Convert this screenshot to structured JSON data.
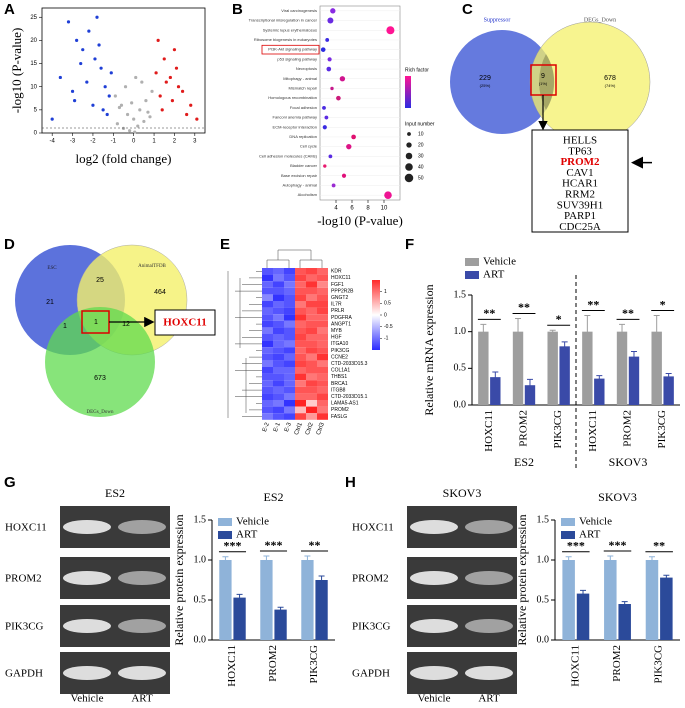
{
  "panel_labels": [
    "A",
    "B",
    "C",
    "D",
    "E",
    "F",
    "G",
    "H"
  ],
  "chart_data": [
    {
      "type": "scatter",
      "xlabel": "log2 (fold change)",
      "ylabel": "-log10 (P-value)",
      "xlim": [
        -4.5,
        3.5
      ],
      "ylim": [
        0,
        27
      ],
      "xticks": [
        -4,
        -3,
        -2,
        -1,
        0,
        1,
        2,
        3
      ],
      "yticks": [
        0,
        5,
        10,
        15,
        20,
        25
      ],
      "series": [
        {
          "color": "#1f3fd6",
          "x": [
            -3.2,
            -2.8,
            -2.5,
            -2.2,
            -1.9,
            -1.6,
            -1.4,
            -1.2,
            -3.6,
            -2.0,
            -1.8,
            -2.6,
            -1.5,
            -3.0,
            -1.3,
            -2.3,
            -1.7,
            -4.0,
            -2.9,
            -1.1
          ],
          "values": [
            24,
            20,
            18,
            22,
            16,
            14,
            10,
            8,
            12,
            6,
            25,
            15,
            5,
            9,
            4,
            11,
            19,
            3,
            7,
            13
          ]
        },
        {
          "color": "#e01b1b",
          "x": [
            1.2,
            1.5,
            1.8,
            2.1,
            2.4,
            2.8,
            1.3,
            1.6,
            2.0,
            2.6,
            3.1,
            1.4,
            1.9,
            2.2,
            1.1
          ],
          "values": [
            20,
            16,
            12,
            14,
            9,
            6,
            8,
            11,
            18,
            4,
            3,
            5,
            7,
            10,
            13
          ]
        },
        {
          "color": "#b0b0b0",
          "x": [
            -0.9,
            -0.6,
            -0.3,
            0,
            0.3,
            0.6,
            0.9,
            -0.8,
            -0.5,
            -0.2,
            0.2,
            0.5,
            0.8,
            -0.4,
            0.4,
            0.1,
            -0.1,
            0.7,
            -0.7,
            0.05
          ],
          "values": [
            8,
            6,
            4,
            3,
            5,
            7,
            9,
            2,
            1,
            0.5,
            1.5,
            2.5,
            3.5,
            10,
            11,
            12,
            6.5,
            4.5,
            5.5,
            0.2
          ]
        }
      ]
    },
    {
      "type": "dot",
      "xlabel": "-log10 (P-value)",
      "xlim": [
        2,
        12
      ],
      "xticks": [
        4,
        6,
        8,
        10
      ],
      "categories": [
        "Viral carcinogenesis",
        "Transcriptional misregulation in cancer",
        "Systemic lupus erythematosus",
        "Ribosome biogenesis in eukaryotes",
        "PI3K-Akt signaling pathway",
        "p53 signaling pathway",
        "Necroptosis",
        "Mitophagy - animal",
        "Mismatch repair",
        "Homologous recombination",
        "Focal adhesion",
        "Fanconi anemia pathway",
        "ECM-receptor interaction",
        "DNA replication",
        "Cell cycle",
        "Cell adhesion molecules (CAMs)",
        "Bladder cancer",
        "Base excision repair",
        "Autophagy - animal",
        "Alcoholism"
      ],
      "values": [
        3.6,
        3.3,
        10.8,
        2.9,
        2.4,
        3.2,
        3.1,
        4.8,
        3.5,
        4.3,
        2.5,
        2.8,
        2.6,
        6.2,
        5.6,
        3.3,
        2.6,
        5.0,
        3.7,
        10.5
      ],
      "sizes": [
        20,
        25,
        45,
        10,
        15,
        12,
        15,
        20,
        8,
        15,
        10,
        10,
        12,
        15,
        20,
        10,
        8,
        12,
        10,
        40
      ],
      "colors": [
        "#8a2be2",
        "#6a2be2",
        "#ff1493",
        "#3d2be2",
        "#2b2be2",
        "#7a2be2",
        "#5a2be2",
        "#d0158f",
        "#c61a8c",
        "#cc1a7a",
        "#4b2be2",
        "#5c2be2",
        "#3a2be2",
        "#e0106f",
        "#dd1486",
        "#5a2be2",
        "#e81a6f",
        "#e0107a",
        "#9a2bd2",
        "#ee1493"
      ],
      "color_legend_title": "Rich factor",
      "size_legend_title": "Input number",
      "size_legend": [
        10,
        20,
        30,
        40,
        50
      ]
    },
    {
      "type": "heatmap",
      "x": [
        "E-2",
        "E-1",
        "E-3",
        "Ctrl1",
        "Ctrl2",
        "Ctrl3"
      ],
      "categories": [
        "KDR",
        "HOXC11",
        "FGF1",
        "PPP2R2B",
        "GNGT2",
        "IL7R",
        "PRLR",
        "PDGFRA",
        "ANGPT1",
        "MYB",
        "HGF",
        "ITGA10",
        "PIK3CG",
        "CCNE2",
        "CTD-2033D15.3",
        "COL1A1",
        "THBS1",
        "BRCA1",
        "ITGB8",
        "CTD-2033D15.1",
        "LAMA5-AS1",
        "PROM2",
        "FASLG"
      ],
      "values": [
        [
          -1.0,
          -0.9,
          -1.1,
          1.0,
          1.1,
          0.9
        ],
        [
          -1.2,
          -0.8,
          -1.0,
          1.1,
          0.9,
          1.0
        ],
        [
          -0.9,
          -1.1,
          -0.8,
          0.9,
          1.2,
          0.7
        ],
        [
          -1.0,
          -1.0,
          -0.9,
          1.0,
          1.0,
          0.9
        ],
        [
          -0.7,
          -1.2,
          -1.0,
          1.1,
          0.8,
          1.0
        ],
        [
          -1.1,
          -0.9,
          -1.0,
          0.8,
          1.1,
          1.1
        ],
        [
          -0.9,
          -1.0,
          -1.1,
          1.0,
          0.9,
          1.1
        ],
        [
          -1.0,
          -0.8,
          -1.2,
          1.2,
          0.9,
          0.9
        ],
        [
          -1.1,
          -1.0,
          -0.8,
          0.9,
          1.0,
          1.0
        ],
        [
          -0.8,
          -1.1,
          -1.0,
          1.0,
          1.1,
          0.8
        ],
        [
          -1.0,
          -0.9,
          -1.0,
          1.1,
          0.9,
          0.9
        ],
        [
          -1.2,
          -0.9,
          -0.8,
          1.0,
          1.0,
          0.9
        ],
        [
          -0.9,
          -1.0,
          -1.1,
          0.9,
          1.1,
          1.0
        ],
        [
          -1.0,
          -1.1,
          -0.9,
          1.0,
          0.8,
          1.2
        ],
        [
          -0.8,
          -1.0,
          -1.1,
          1.1,
          1.0,
          0.8
        ],
        [
          -1.1,
          -0.9,
          -0.9,
          0.9,
          1.0,
          1.0
        ],
        [
          -1.0,
          -1.0,
          -0.9,
          1.2,
          0.8,
          0.9
        ],
        [
          -0.9,
          -1.1,
          -0.9,
          0.8,
          1.1,
          1.0
        ],
        [
          -1.0,
          -0.9,
          -1.0,
          1.0,
          1.0,
          0.9
        ],
        [
          -1.1,
          -1.0,
          -0.8,
          0.9,
          0.9,
          1.1
        ],
        [
          -0.9,
          -0.8,
          -1.2,
          1.3,
          0.3,
          0.9
        ],
        [
          -1.0,
          -1.1,
          -0.8,
          0.4,
          1.3,
          0.8
        ],
        [
          -0.8,
          -1.0,
          -1.1,
          1.1,
          0.6,
          1.2
        ]
      ],
      "zlim": [
        -1.5,
        1.5
      ],
      "zticks": [
        1,
        0.5,
        0,
        -0.5,
        -1
      ]
    },
    {
      "type": "bar",
      "ylabel": "Relative mRNA expression",
      "groups": [
        "ES2",
        "SKOV3"
      ],
      "categories": [
        "HOXC11",
        "PROM2",
        "PIK3CG",
        "HOXC11",
        "PROM2",
        "PIK3CG"
      ],
      "ylim": [
        0,
        1.5
      ],
      "yticks": [
        {
          "value": 0,
          "label": "0.0"
        },
        {
          "value": 0.5,
          "label": "0.5"
        },
        {
          "value": 1,
          "label": "1.0"
        },
        {
          "value": 1.5,
          "label": "1.5"
        }
      ],
      "series": [
        {
          "name": "Vehicle",
          "color": "#9e9e9e",
          "values": [
            1.0,
            1.0,
            1.0,
            1.0,
            1.0,
            1.0
          ],
          "errors": [
            0.1,
            0.18,
            0.02,
            0.22,
            0.1,
            0.22
          ]
        },
        {
          "name": "ART",
          "color": "#3a4aa8",
          "values": [
            0.38,
            0.27,
            0.8,
            0.36,
            0.66,
            0.39
          ],
          "errors": [
            0.07,
            0.08,
            0.06,
            0.04,
            0.07,
            0.04
          ]
        }
      ],
      "significance": [
        "**",
        "**",
        "*",
        "**",
        "**",
        "*"
      ]
    },
    {
      "type": "bar",
      "title": "ES2",
      "ylabel": "Relative protein expression",
      "categories": [
        "HOXC11",
        "PROM2",
        "PIK3CG"
      ],
      "ylim": [
        0,
        1.5
      ],
      "yticks": [
        {
          "value": 0,
          "label": "0.0"
        },
        {
          "value": 0.5,
          "label": "0.5"
        },
        {
          "value": 1,
          "label": "1.0"
        },
        {
          "value": 1.5,
          "label": "1.5"
        }
      ],
      "series": [
        {
          "name": "Vehicle",
          "color": "#8fb3d9",
          "values": [
            1.0,
            1.0,
            1.0
          ],
          "errors": [
            0.04,
            0.05,
            0.05
          ]
        },
        {
          "name": "ART",
          "color": "#2b4a9a",
          "values": [
            0.53,
            0.38,
            0.75
          ],
          "errors": [
            0.04,
            0.03,
            0.05
          ]
        }
      ],
      "significance": [
        "***",
        "***",
        "**"
      ]
    },
    {
      "type": "bar",
      "title": "SKOV3",
      "ylabel": "Relative protein expression",
      "categories": [
        "HOXC11",
        "PROM2",
        "PIK3CG"
      ],
      "ylim": [
        0,
        1.5
      ],
      "yticks": [
        {
          "value": 0,
          "label": "0.0"
        },
        {
          "value": 0.5,
          "label": "0.5"
        },
        {
          "value": 1,
          "label": "1.0"
        },
        {
          "value": 1.5,
          "label": "1.5"
        }
      ],
      "series": [
        {
          "name": "Vehicle",
          "color": "#8fb3d9",
          "values": [
            1.0,
            1.0,
            1.0
          ],
          "errors": [
            0.04,
            0.05,
            0.04
          ]
        },
        {
          "name": "ART",
          "color": "#2b4a9a",
          "values": [
            0.58,
            0.45,
            0.78
          ],
          "errors": [
            0.04,
            0.03,
            0.03
          ]
        }
      ],
      "significance": [
        "***",
        "***",
        "**"
      ]
    }
  ],
  "venn_c": {
    "sets": [
      "Suppressor",
      "DEGs_Down"
    ],
    "counts": [
      "229",
      "9",
      "678"
    ],
    "percents": [
      "(25%)",
      "(1%)",
      "(74%)"
    ]
  },
  "gene_list": {
    "genes": [
      "HELLS",
      "TP63",
      "PROM2",
      "CAV1",
      "HCAR1",
      "RRM2",
      "SUV39H1",
      "PARP1",
      "CDC25A"
    ],
    "highlight": "PROM2"
  },
  "venn_d": {
    "sets": [
      "ESC",
      "AnimalTFDB",
      "DEGs_Down"
    ],
    "counts": [
      "21",
      "25",
      "464",
      "1",
      "1",
      "12",
      "673"
    ],
    "callout": "HOXC11"
  },
  "blots": [
    {
      "title": "ES2",
      "rows": [
        "HOXC11",
        "PROM2",
        "PIK3CG",
        "GAPDH"
      ],
      "lanes": [
        "Vehicle",
        "ART"
      ]
    },
    {
      "title": "SKOV3",
      "rows": [
        "HOXC11",
        "PROM2",
        "PIK3CG",
        "GAPDH"
      ],
      "lanes": [
        "Vehicle",
        "ART"
      ]
    }
  ]
}
